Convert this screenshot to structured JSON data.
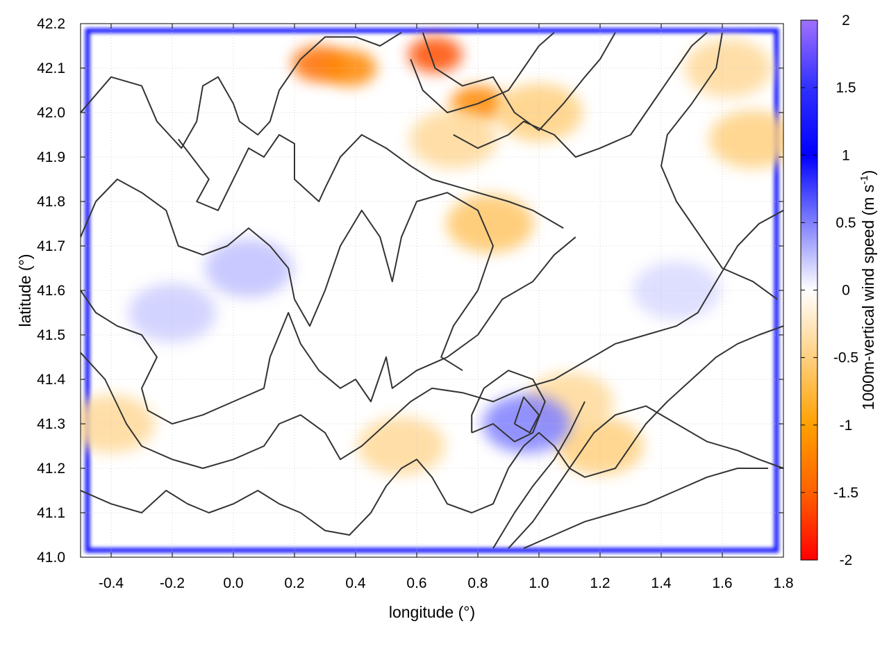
{
  "chart_data": {
    "type": "heatmap",
    "title": "",
    "xlabel": "longitude (°)",
    "ylabel": "latitude (°)",
    "colorbar_label": "1000m-vertical wind speed (m s",
    "colorbar_label_sup": "-1",
    "colorbar_label_end": ")",
    "xlim": [
      -0.5,
      1.8
    ],
    "ylim": [
      41.0,
      42.2
    ],
    "clim": [
      -2,
      2
    ],
    "x_ticks": [
      -0.4,
      -0.2,
      0.0,
      0.2,
      0.4,
      0.6,
      0.8,
      1.0,
      1.2,
      1.4,
      1.6,
      1.8
    ],
    "x_tick_labels": [
      "-0.4",
      "-0.2",
      "0.0",
      "0.2",
      "0.4",
      "0.6",
      "0.8",
      "1.0",
      "1.2",
      "1.4",
      "1.6",
      "1.8"
    ],
    "y_ticks": [
      41.0,
      41.1,
      41.2,
      41.3,
      41.4,
      41.5,
      41.6,
      41.7,
      41.8,
      41.9,
      42.0,
      42.1,
      42.2
    ],
    "y_tick_labels": [
      "41.0",
      "41.1",
      "41.2",
      "41.3",
      "41.4",
      "41.5",
      "41.6",
      "41.7",
      "41.8",
      "41.9",
      "42.0",
      "42.1",
      "42.2"
    ],
    "colorbar_ticks": [
      2,
      1.5,
      1,
      0.5,
      0,
      -0.5,
      -1,
      -1.5,
      -2
    ],
    "colorbar_tick_labels": [
      "2",
      "1.5",
      "1",
      "0.5",
      "0",
      "-0.5",
      "-1",
      "-1.5",
      "-2"
    ],
    "colormap": [
      {
        "value": 2,
        "color": "#a070ff"
      },
      {
        "value": 1.5,
        "color": "#3030ff"
      },
      {
        "value": 1,
        "color": "#0000ff"
      },
      {
        "value": 0.5,
        "color": "#8080ff"
      },
      {
        "value": 0,
        "color": "#ffffff"
      },
      {
        "value": -0.5,
        "color": "#ffd080"
      },
      {
        "value": -1,
        "color": "#ffa000"
      },
      {
        "value": -1.5,
        "color": "#ff6000"
      },
      {
        "value": -2,
        "color": "#ff0000"
      }
    ],
    "grid": true,
    "contour_color": "#333333",
    "hotspots": [
      {
        "lon": 0.28,
        "lat": 42.11,
        "value": -1.4
      },
      {
        "lon": 0.38,
        "lat": 42.1,
        "value": -1.2
      },
      {
        "lon": 0.66,
        "lat": 42.13,
        "value": -1.6
      },
      {
        "lon": 0.8,
        "lat": 42.02,
        "value": -1.2
      },
      {
        "lon": 0.84,
        "lat": 41.75,
        "value": -0.6
      },
      {
        "lon": 0.72,
        "lat": 41.94,
        "value": -0.4
      },
      {
        "lon": 1.0,
        "lat": 42.0,
        "value": -0.5
      },
      {
        "lon": 1.7,
        "lat": 41.94,
        "value": -0.5
      },
      {
        "lon": 1.62,
        "lat": 42.1,
        "value": -0.4
      },
      {
        "lon": -0.4,
        "lat": 41.3,
        "value": -0.4
      },
      {
        "lon": 0.55,
        "lat": 41.25,
        "value": -0.4
      },
      {
        "lon": 1.2,
        "lat": 41.25,
        "value": -0.5
      },
      {
        "lon": 1.1,
        "lat": 41.35,
        "value": -0.4
      },
      {
        "lon": 0.05,
        "lat": 41.65,
        "value": 0.25
      },
      {
        "lon": -0.2,
        "lat": 41.55,
        "value": 0.2
      },
      {
        "lon": 1.45,
        "lat": 41.6,
        "value": 0.15
      },
      {
        "lon": 0.96,
        "lat": 41.3,
        "value": 0.5
      }
    ],
    "boundary_band_value": 1.0,
    "contours": [
      [
        [
          -0.5,
          42.0
        ],
        [
          -0.4,
          42.08
        ],
        [
          -0.3,
          42.06
        ],
        [
          -0.25,
          41.98
        ],
        [
          -0.17,
          41.92
        ],
        [
          -0.12,
          41.98
        ],
        [
          -0.1,
          42.06
        ],
        [
          -0.05,
          42.08
        ],
        [
          0.0,
          42.02
        ],
        [
          0.02,
          41.98
        ],
        [
          0.08,
          41.95
        ],
        [
          0.12,
          41.98
        ],
        [
          0.15,
          42.05
        ],
        [
          0.22,
          42.12
        ],
        [
          0.3,
          42.17
        ],
        [
          0.4,
          42.17
        ],
        [
          0.48,
          42.15
        ],
        [
          0.55,
          42.18
        ]
      ],
      [
        [
          -0.18,
          41.94
        ],
        [
          -0.08,
          41.85
        ],
        [
          -0.12,
          41.8
        ],
        [
          -0.05,
          41.78
        ],
        [
          0.0,
          41.85
        ],
        [
          0.05,
          41.92
        ],
        [
          0.1,
          41.9
        ],
        [
          0.15,
          41.95
        ],
        [
          0.2,
          41.93
        ],
        [
          0.2,
          41.85
        ],
        [
          0.28,
          41.8
        ],
        [
          0.3,
          41.83
        ],
        [
          0.35,
          41.9
        ],
        [
          0.42,
          41.95
        ],
        [
          0.5,
          41.92
        ],
        [
          0.58,
          41.88
        ],
        [
          0.65,
          41.85
        ],
        [
          0.75,
          41.83
        ],
        [
          0.9,
          41.8
        ],
        [
          0.98,
          41.78
        ],
        [
          1.08,
          41.74
        ]
      ],
      [
        [
          -0.5,
          41.72
        ],
        [
          -0.45,
          41.8
        ],
        [
          -0.38,
          41.85
        ],
        [
          -0.3,
          41.82
        ],
        [
          -0.22,
          41.78
        ],
        [
          -0.18,
          41.7
        ],
        [
          -0.1,
          41.68
        ],
        [
          -0.02,
          41.7
        ],
        [
          0.05,
          41.74
        ],
        [
          0.12,
          41.7
        ],
        [
          0.18,
          41.65
        ],
        [
          0.2,
          41.58
        ],
        [
          0.25,
          41.52
        ],
        [
          0.3,
          41.6
        ],
        [
          0.35,
          41.7
        ],
        [
          0.42,
          41.78
        ],
        [
          0.48,
          41.72
        ],
        [
          0.52,
          41.62
        ],
        [
          0.55,
          41.72
        ],
        [
          0.6,
          41.8
        ],
        [
          0.7,
          41.82
        ],
        [
          0.8,
          41.78
        ],
        [
          0.85,
          41.7
        ],
        [
          0.8,
          41.6
        ],
        [
          0.72,
          41.52
        ],
        [
          0.68,
          41.45
        ],
        [
          0.75,
          41.42
        ]
      ],
      [
        [
          -0.5,
          41.6
        ],
        [
          -0.45,
          41.55
        ],
        [
          -0.38,
          41.52
        ],
        [
          -0.3,
          41.5
        ],
        [
          -0.25,
          41.45
        ],
        [
          -0.3,
          41.38
        ],
        [
          -0.28,
          41.33
        ],
        [
          -0.2,
          41.3
        ],
        [
          -0.1,
          41.32
        ],
        [
          0.0,
          41.35
        ],
        [
          0.1,
          41.38
        ],
        [
          0.12,
          41.45
        ],
        [
          0.18,
          41.55
        ],
        [
          0.22,
          41.48
        ],
        [
          0.28,
          41.42
        ],
        [
          0.35,
          41.38
        ],
        [
          0.4,
          41.4
        ],
        [
          0.45,
          41.35
        ],
        [
          0.5,
          41.45
        ],
        [
          0.52,
          41.38
        ],
        [
          0.6,
          41.42
        ],
        [
          0.7,
          41.45
        ],
        [
          0.8,
          41.5
        ],
        [
          0.88,
          41.58
        ],
        [
          0.98,
          41.62
        ],
        [
          1.05,
          41.68
        ],
        [
          1.12,
          41.72
        ]
      ],
      [
        [
          -0.5,
          41.46
        ],
        [
          -0.42,
          41.4
        ],
        [
          -0.35,
          41.3
        ],
        [
          -0.3,
          41.25
        ],
        [
          -0.2,
          41.22
        ],
        [
          -0.1,
          41.2
        ],
        [
          0.0,
          41.22
        ],
        [
          0.1,
          41.25
        ],
        [
          0.15,
          41.3
        ],
        [
          0.22,
          41.32
        ],
        [
          0.3,
          41.28
        ],
        [
          0.35,
          41.22
        ],
        [
          0.42,
          41.25
        ],
        [
          0.5,
          41.3
        ],
        [
          0.58,
          41.35
        ],
        [
          0.65,
          41.38
        ],
        [
          0.75,
          41.37
        ],
        [
          0.85,
          41.35
        ],
        [
          0.95,
          41.38
        ],
        [
          1.05,
          41.4
        ],
        [
          1.15,
          41.44
        ],
        [
          1.25,
          41.48
        ],
        [
          1.35,
          41.5
        ],
        [
          1.45,
          41.52
        ],
        [
          1.52,
          41.55
        ],
        [
          1.58,
          41.62
        ],
        [
          1.65,
          41.7
        ],
        [
          1.72,
          41.75
        ],
        [
          1.8,
          41.78
        ]
      ],
      [
        [
          -0.5,
          41.15
        ],
        [
          -0.4,
          41.12
        ],
        [
          -0.3,
          41.1
        ],
        [
          -0.22,
          41.15
        ],
        [
          -0.15,
          41.12
        ],
        [
          -0.08,
          41.1
        ],
        [
          0.0,
          41.12
        ],
        [
          0.08,
          41.15
        ],
        [
          0.15,
          41.12
        ],
        [
          0.22,
          41.1
        ],
        [
          0.3,
          41.06
        ],
        [
          0.38,
          41.05
        ],
        [
          0.45,
          41.1
        ],
        [
          0.5,
          41.16
        ],
        [
          0.55,
          41.2
        ],
        [
          0.6,
          41.22
        ],
        [
          0.65,
          41.18
        ],
        [
          0.7,
          41.12
        ],
        [
          0.78,
          41.1
        ],
        [
          0.85,
          41.12
        ],
        [
          0.9,
          41.2
        ],
        [
          0.95,
          41.25
        ],
        [
          1.0,
          41.28
        ],
        [
          1.05,
          41.25
        ],
        [
          1.1,
          41.2
        ],
        [
          1.15,
          41.18
        ],
        [
          1.25,
          41.2
        ],
        [
          1.3,
          41.25
        ],
        [
          1.35,
          41.3
        ],
        [
          1.42,
          41.35
        ],
        [
          1.5,
          41.4
        ],
        [
          1.58,
          41.45
        ],
        [
          1.65,
          41.48
        ],
        [
          1.72,
          41.5
        ],
        [
          1.8,
          41.52
        ]
      ],
      [
        [
          0.58,
          42.12
        ],
        [
          0.62,
          42.05
        ],
        [
          0.7,
          42.0
        ],
        [
          0.8,
          42.02
        ],
        [
          0.9,
          42.05
        ],
        [
          0.95,
          42.1
        ],
        [
          1.0,
          42.15
        ],
        [
          1.05,
          42.18
        ]
      ],
      [
        [
          0.62,
          42.18
        ],
        [
          0.66,
          42.1
        ],
        [
          0.75,
          42.06
        ],
        [
          0.85,
          42.08
        ],
        [
          0.92,
          42.0
        ],
        [
          1.0,
          41.96
        ],
        [
          1.08,
          42.02
        ],
        [
          1.15,
          42.08
        ],
        [
          1.2,
          42.12
        ],
        [
          1.25,
          42.18
        ]
      ],
      [
        [
          0.72,
          41.95
        ],
        [
          0.8,
          41.92
        ],
        [
          0.9,
          41.95
        ],
        [
          0.95,
          41.98
        ],
        [
          1.05,
          41.95
        ],
        [
          1.12,
          41.9
        ],
        [
          1.2,
          41.92
        ],
        [
          1.3,
          41.95
        ],
        [
          1.35,
          42.0
        ],
        [
          1.4,
          42.05
        ],
        [
          1.45,
          42.1
        ],
        [
          1.5,
          42.15
        ],
        [
          1.55,
          42.18
        ]
      ],
      [
        [
          1.6,
          42.18
        ],
        [
          1.58,
          42.1
        ],
        [
          1.5,
          42.02
        ],
        [
          1.42,
          41.95
        ],
        [
          1.4,
          41.88
        ],
        [
          1.45,
          41.8
        ],
        [
          1.5,
          41.75
        ],
        [
          1.55,
          41.7
        ],
        [
          1.6,
          41.65
        ],
        [
          1.7,
          41.62
        ],
        [
          1.78,
          41.58
        ]
      ],
      [
        [
          0.9,
          41.02
        ],
        [
          0.98,
          41.08
        ],
        [
          1.05,
          41.15
        ],
        [
          1.12,
          41.22
        ],
        [
          1.18,
          41.28
        ],
        [
          1.25,
          41.32
        ],
        [
          1.35,
          41.34
        ],
        [
          1.45,
          41.3
        ],
        [
          1.55,
          41.26
        ],
        [
          1.65,
          41.24
        ],
        [
          1.72,
          41.22
        ],
        [
          1.8,
          41.2
        ]
      ],
      [
        [
          0.85,
          41.02
        ],
        [
          0.92,
          41.1
        ],
        [
          0.98,
          41.16
        ],
        [
          1.05,
          41.22
        ],
        [
          1.1,
          41.28
        ],
        [
          1.15,
          41.35
        ]
      ],
      [
        [
          0.95,
          41.02
        ],
        [
          1.05,
          41.05
        ],
        [
          1.15,
          41.08
        ],
        [
          1.25,
          41.1
        ],
        [
          1.35,
          41.12
        ],
        [
          1.45,
          41.15
        ],
        [
          1.55,
          41.18
        ],
        [
          1.65,
          41.2
        ],
        [
          1.75,
          41.2
        ]
      ],
      [
        [
          0.78,
          41.28
        ],
        [
          0.85,
          41.3
        ],
        [
          0.92,
          41.26
        ],
        [
          0.98,
          41.28
        ],
        [
          1.02,
          41.35
        ],
        [
          0.98,
          41.4
        ],
        [
          0.9,
          41.42
        ],
        [
          0.82,
          41.38
        ],
        [
          0.78,
          41.32
        ],
        [
          0.78,
          41.28
        ]
      ],
      [
        [
          0.92,
          41.3
        ],
        [
          0.97,
          41.28
        ],
        [
          1.0,
          41.32
        ],
        [
          0.95,
          41.36
        ],
        [
          0.92,
          41.3
        ]
      ]
    ]
  }
}
